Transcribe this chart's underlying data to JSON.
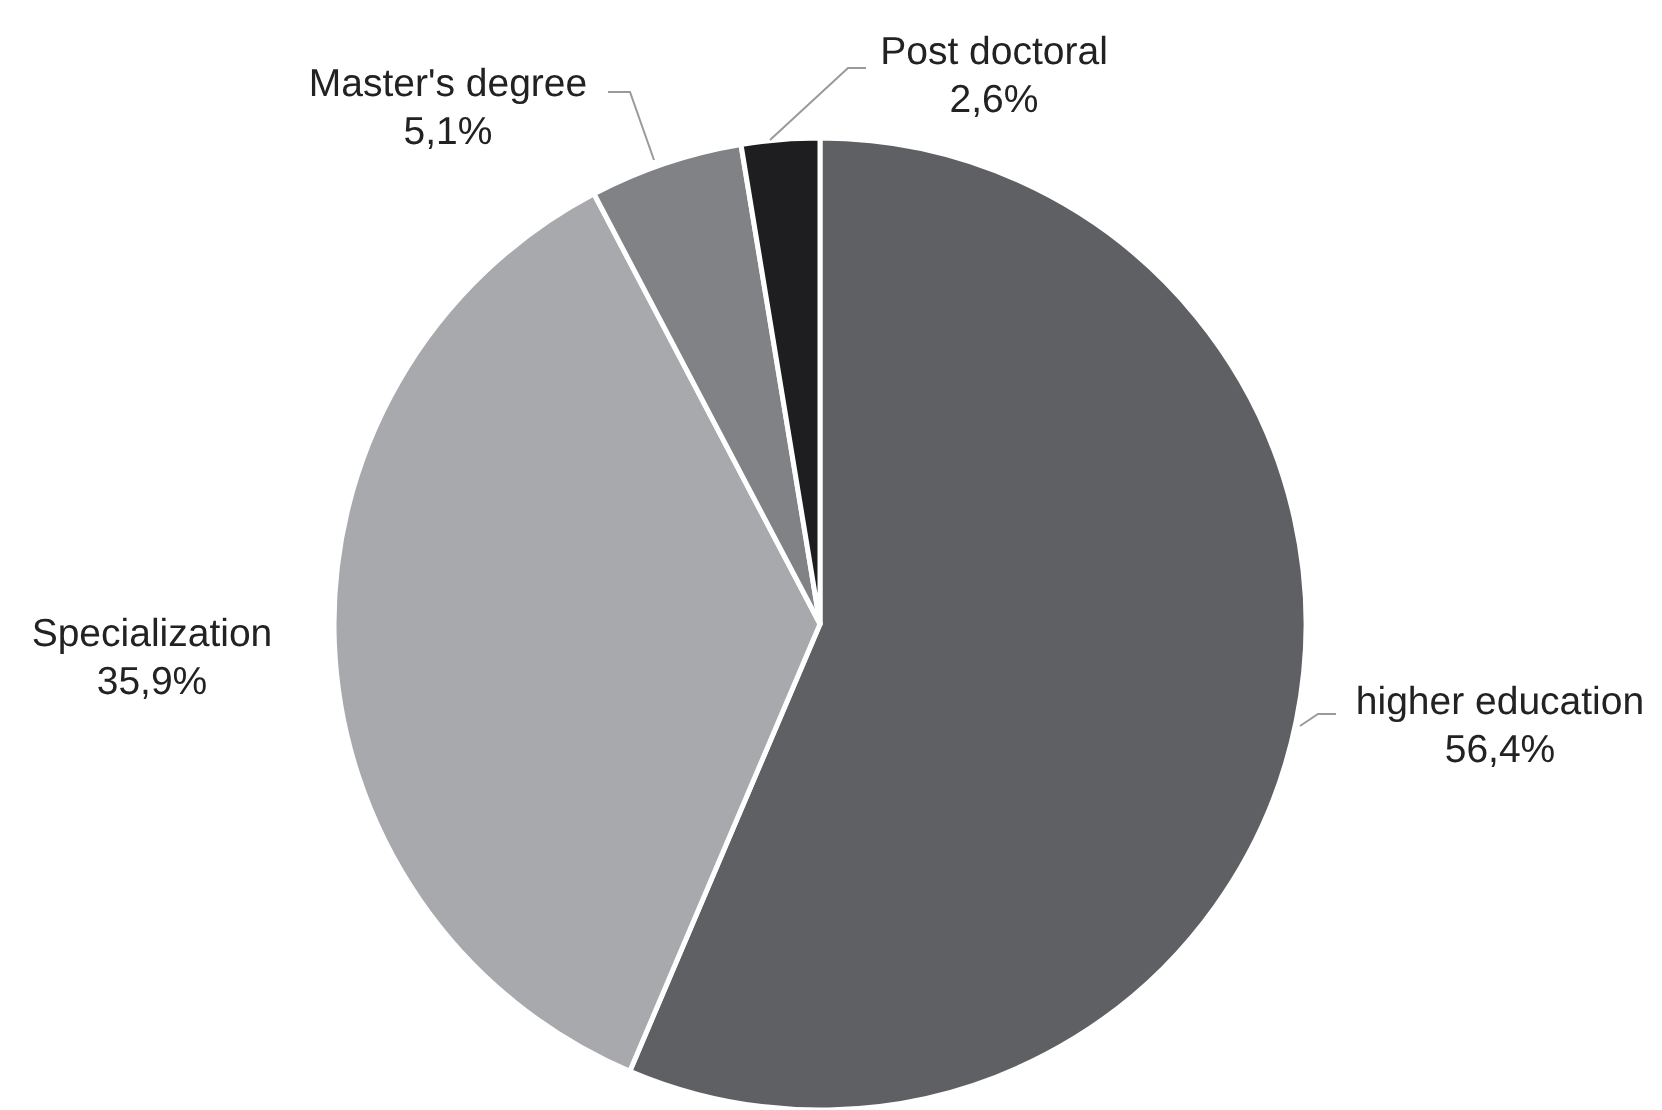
{
  "chart_data": {
    "type": "pie",
    "categories": [
      "higher education",
      "Specialization",
      "Master's degree",
      "Post doctoral"
    ],
    "values": [
      56.4,
      35.9,
      5.1,
      2.6
    ],
    "colors": [
      "#5f6064",
      "#a7a9ac",
      "#808285",
      "#1e1e20"
    ],
    "value_labels": [
      "56,4%",
      "35,9%",
      "5,1%",
      "2,6%"
    ]
  }
}
